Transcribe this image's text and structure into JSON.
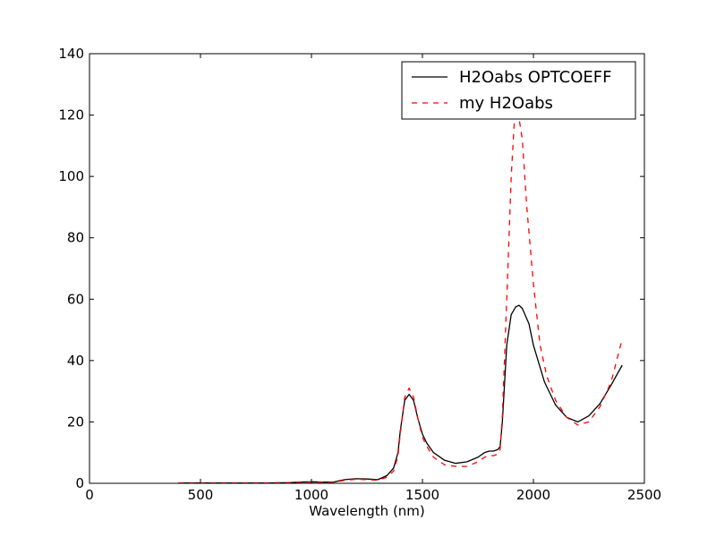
{
  "chart_data": {
    "type": "line",
    "title": "",
    "xlabel": "Wavelength (nm)",
    "ylabel": "",
    "xlim": [
      0,
      2500
    ],
    "ylim": [
      0,
      140
    ],
    "xticks": [
      0,
      500,
      1000,
      1500,
      2000,
      2500
    ],
    "yticks": [
      0,
      20,
      40,
      60,
      80,
      100,
      120,
      140
    ],
    "grid": false,
    "legend_position": "top-right",
    "series": [
      {
        "name": "H2Oabs OPTCOEFF",
        "color": "#000000",
        "style": "solid",
        "x": [
          400,
          600,
          800,
          900,
          950,
          1000,
          1050,
          1100,
          1150,
          1200,
          1250,
          1300,
          1340,
          1370,
          1390,
          1400,
          1420,
          1440,
          1460,
          1480,
          1500,
          1520,
          1550,
          1600,
          1650,
          1700,
          1750,
          1780,
          1800,
          1820,
          1840,
          1850,
          1860,
          1880,
          1900,
          1920,
          1935,
          1950,
          1980,
          2000,
          2050,
          2100,
          2150,
          2200,
          2250,
          2300,
          2350,
          2400
        ],
        "values": [
          0.1,
          0.1,
          0.1,
          0.2,
          0.4,
          0.5,
          0.4,
          0.4,
          1.2,
          1.5,
          1.4,
          1.2,
          2.5,
          5.0,
          10,
          17,
          27,
          29,
          27,
          21,
          16,
          13,
          10,
          7.5,
          6.5,
          7.0,
          8.5,
          10,
          10.5,
          10.5,
          11,
          12,
          20,
          45,
          55,
          57.5,
          58,
          57,
          52,
          45,
          33,
          25.5,
          21.5,
          20,
          22,
          26,
          32,
          38.5
        ]
      },
      {
        "name": "my H2Oabs",
        "color": "#ff0000",
        "style": "dashed",
        "x": [
          400,
          600,
          800,
          900,
          950,
          1000,
          1050,
          1100,
          1150,
          1200,
          1250,
          1300,
          1340,
          1370,
          1390,
          1400,
          1420,
          1440,
          1460,
          1480,
          1500,
          1520,
          1550,
          1600,
          1650,
          1700,
          1750,
          1780,
          1800,
          1820,
          1840,
          1850,
          1860,
          1880,
          1900,
          1915,
          1925,
          1935,
          1950,
          1970,
          2000,
          2030,
          2060,
          2100,
          2150,
          2200,
          2250,
          2300,
          2350,
          2400
        ],
        "values": [
          0.1,
          0.1,
          0.1,
          0.2,
          0.3,
          0.4,
          0.3,
          0.3,
          1.0,
          1.3,
          1.2,
          1.0,
          2.0,
          4.0,
          9.0,
          16,
          28,
          31,
          28,
          21,
          15,
          12,
          8.5,
          6.0,
          5.5,
          5.5,
          7.0,
          8.5,
          9.0,
          9.0,
          9.5,
          11,
          22,
          60,
          100,
          119,
          120,
          119,
          112,
          90,
          65,
          45,
          35,
          27,
          21.5,
          19,
          20,
          25,
          33,
          47
        ]
      }
    ]
  }
}
